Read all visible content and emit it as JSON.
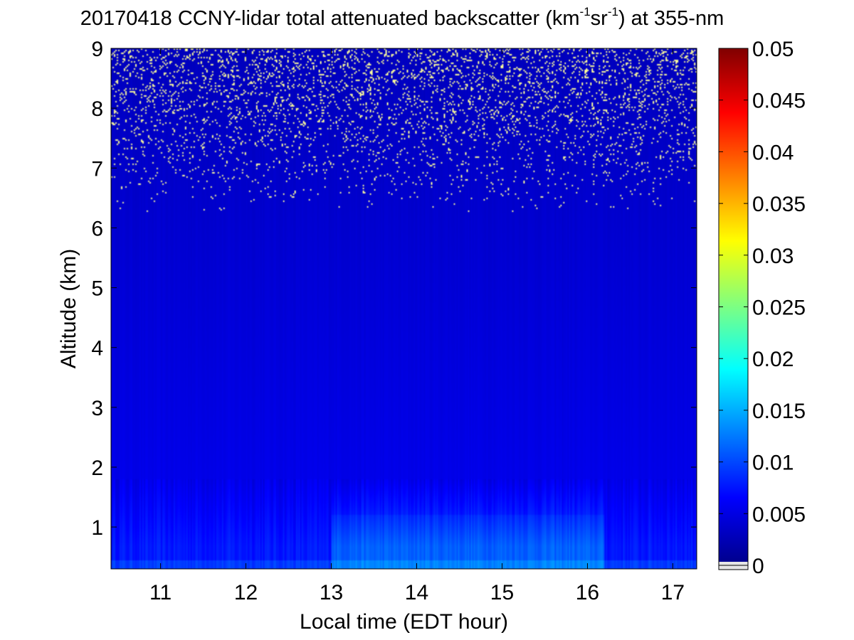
{
  "chart_data": {
    "type": "heatmap",
    "title": {
      "date": "20170418",
      "text": "CCNY-lidar total attenuated backscatter (km",
      "exp1": "-1",
      "mid": "sr",
      "exp2": "-1",
      "tail": ") at 355-nm"
    },
    "xlabel": "Local time (EDT hour)",
    "ylabel": "Altitude (km)",
    "xlim": [
      10.42,
      17.28
    ],
    "ylim": [
      0.3,
      9
    ],
    "xticks": [
      "11",
      "12",
      "13",
      "14",
      "15",
      "16",
      "17"
    ],
    "yticks": [
      "1",
      "2",
      "3",
      "4",
      "5",
      "6",
      "7",
      "8",
      "9"
    ],
    "colorbar": {
      "range": [
        0,
        0.05
      ],
      "colormap": "jet",
      "ticks": [
        "0",
        "0.005",
        "0.01",
        "0.015",
        "0.02",
        "0.025",
        "0.03",
        "0.035",
        "0.04",
        "0.045",
        "0.05"
      ],
      "below_range_color": "#e6e6e6"
    },
    "field_description": {
      "boundary_layer_top_km": 1.8,
      "noise_onset_km": 6.2,
      "enhanced_backscatter_hours": [
        13.0,
        16.2
      ],
      "max_value_near_surface": 0.011
    },
    "colors": {
      "background_value_color": "#0b1bd6",
      "noise_speck_color": "#ffff99"
    }
  }
}
